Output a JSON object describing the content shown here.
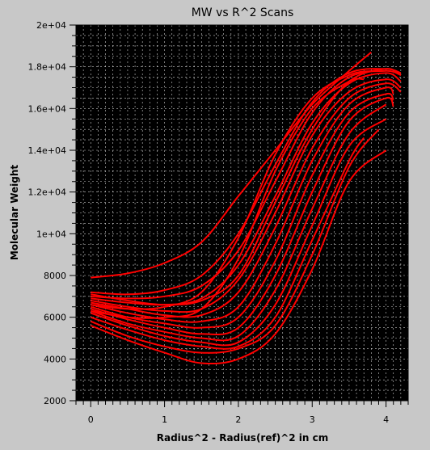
{
  "chart_data": {
    "type": "line",
    "title": "MW vs R^2 Scans",
    "xlabel": "Radius^2 - Radius(ref)^2 in cm",
    "ylabel": "Molecular Weight",
    "xlim": [
      -0.2,
      4.3
    ],
    "ylim": [
      2000,
      20000
    ],
    "xticks": [
      0,
      1,
      2,
      3,
      4
    ],
    "xtick_labels": [
      "0",
      "1",
      "2",
      "3",
      "4"
    ],
    "yticks": [
      2000,
      4000,
      6000,
      8000,
      10000,
      12000,
      14000,
      16000,
      18000,
      20000
    ],
    "ytick_labels": [
      "2000",
      "4000",
      "6000",
      "8000",
      "1e+04",
      "1.2e+04",
      "1.4e+04",
      "1.6e+04",
      "1.8e+04",
      "2e+04"
    ],
    "grid": true,
    "background_color": "#000000",
    "line_color": "#ff0000",
    "series": [
      {
        "x": [
          0,
          0.5,
          1.0,
          1.5,
          2.0,
          2.5,
          3.0,
          3.5,
          3.8
        ],
        "y": [
          7900,
          8100,
          8600,
          9600,
          11800,
          14000,
          16200,
          17800,
          18700
        ]
      },
      {
        "x": [
          0,
          0.5,
          1.0,
          1.5,
          2.0,
          2.5,
          3.0,
          3.5,
          4.0,
          4.2
        ],
        "y": [
          7200,
          7100,
          7300,
          8000,
          10000,
          13300,
          16300,
          17700,
          17900,
          17700
        ]
      },
      {
        "x": [
          0,
          0.5,
          1.0,
          1.5,
          2.0,
          2.5,
          3.0,
          3.5,
          4.0,
          4.2
        ],
        "y": [
          7000,
          6900,
          7000,
          7500,
          9200,
          12500,
          15800,
          17500,
          17800,
          17600
        ]
      },
      {
        "x": [
          0,
          0.5,
          1.0,
          1.5,
          2.0,
          2.5,
          3.0,
          3.5,
          4.0,
          4.2
        ],
        "y": [
          6900,
          6700,
          6600,
          6900,
          8500,
          11800,
          15300,
          17200,
          17700,
          17300
        ]
      },
      {
        "x": [
          0,
          0.5,
          1.0,
          1.5,
          2.0,
          2.5,
          3.0,
          3.5,
          4.0,
          4.2
        ],
        "y": [
          6800,
          6500,
          6300,
          6400,
          7800,
          11000,
          14700,
          16800,
          17400,
          17000
        ]
      },
      {
        "x": [
          0,
          0.5,
          1.0,
          1.5,
          2.0,
          2.5,
          3.0,
          3.5,
          4.0,
          4.2
        ],
        "y": [
          6700,
          6400,
          6100,
          6100,
          7200,
          10300,
          14100,
          16500,
          17200,
          16800
        ]
      },
      {
        "x": [
          0,
          0.5,
          1.0,
          1.5,
          2.0,
          2.5,
          3.0,
          3.5,
          4.0,
          4.1
        ],
        "y": [
          6600,
          6200,
          5900,
          5800,
          6500,
          9500,
          13500,
          16200,
          17000,
          16700
        ]
      },
      {
        "x": [
          0,
          0.5,
          1.0,
          1.5,
          2.0,
          2.5,
          3.0,
          3.5,
          4.0,
          4.1
        ],
        "y": [
          6500,
          6000,
          5700,
          5500,
          6000,
          8700,
          12800,
          15800,
          16700,
          16400
        ]
      },
      {
        "x": [
          0,
          0.5,
          1.0,
          1.5,
          2.0,
          2.5,
          3.0,
          3.5,
          4.0,
          4.1
        ],
        "y": [
          6400,
          5900,
          5500,
          5200,
          5500,
          8000,
          12000,
          15400,
          16500,
          16100
        ]
      },
      {
        "x": [
          0,
          0.5,
          1.0,
          1.5,
          2.0,
          2.5,
          3.0,
          3.5,
          4.0
        ],
        "y": [
          6300,
          5700,
          5300,
          5000,
          5100,
          7300,
          11200,
          14800,
          16200
        ]
      },
      {
        "x": [
          0,
          0.5,
          1.0,
          1.5,
          2.0,
          2.5,
          3.0,
          3.5,
          4.0
        ],
        "y": [
          6200,
          5600,
          5100,
          4800,
          4800,
          6600,
          10400,
          14200,
          15500
        ]
      },
      {
        "x": [
          0,
          0.5,
          1.0,
          1.5,
          2.0,
          2.5,
          3.0,
          3.5,
          3.7
        ],
        "y": [
          6000,
          5400,
          4900,
          4600,
          4600,
          6000,
          9700,
          13500,
          14600
        ]
      },
      {
        "x": [
          0,
          0.5,
          1.0,
          1.5,
          2.0,
          2.5,
          3.0,
          3.5,
          3.9
        ],
        "y": [
          5800,
          5100,
          4600,
          4300,
          4500,
          5600,
          9000,
          13200,
          15000
        ]
      },
      {
        "x": [
          0,
          0.5,
          1.0,
          1.5,
          2.0,
          2.5,
          3.0,
          3.5,
          4.0
        ],
        "y": [
          5600,
          4900,
          4300,
          3800,
          4000,
          5200,
          8300,
          12500,
          14000
        ]
      },
      {
        "x": [
          0,
          0.5,
          1.0,
          1.5,
          2.0,
          2.5,
          3.0,
          3.5,
          4.0,
          4.2
        ],
        "y": [
          7100,
          6800,
          6600,
          6800,
          8000,
          11500,
          15000,
          17300,
          17900,
          17600
        ]
      },
      {
        "x": [
          0,
          0.5,
          1.0,
          1.5,
          2.0,
          2.5,
          3.0,
          3.5,
          3.8
        ],
        "y": [
          6600,
          6400,
          6500,
          7200,
          9800,
          13800,
          16500,
          17600,
          17800
        ]
      },
      {
        "x": [
          0,
          0.5,
          1.0,
          1.5,
          2.0,
          2.5,
          3.0,
          3.5,
          3.7
        ],
        "y": [
          6300,
          6000,
          6000,
          6400,
          8800,
          13000,
          16000,
          17300,
          17400
        ]
      }
    ]
  }
}
